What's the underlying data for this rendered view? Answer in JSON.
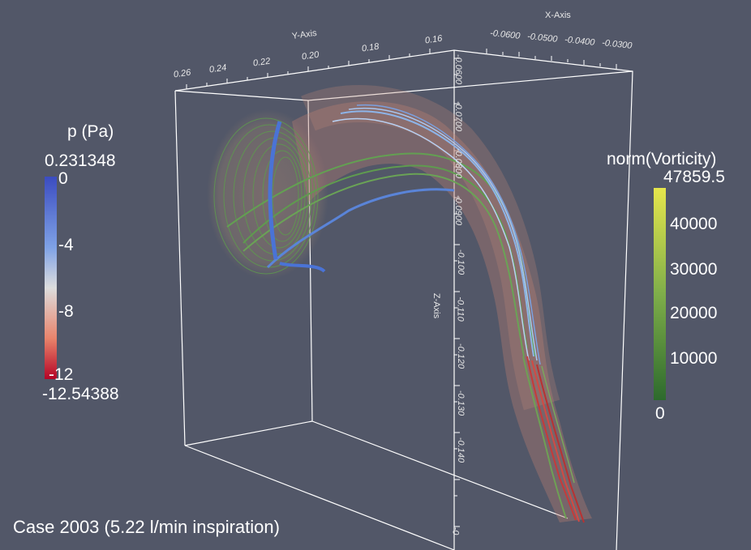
{
  "caption": "Case 2003 (5.22 l/min inspiration)",
  "pressure_bar": {
    "title": "p (Pa)",
    "max_label": "0.231348",
    "min_label": "-12.54388",
    "ticks": [
      "0",
      "-4",
      "-8",
      "-12"
    ],
    "colors": {
      "top": "#3b4cc0",
      "mid": "#dddddd",
      "bottom": "#b40426"
    }
  },
  "vorticity_bar": {
    "title": "norm(Vorticity)",
    "max_label": "47859.5",
    "min_label": "0",
    "ticks": [
      "40000",
      "30000",
      "20000",
      "10000"
    ],
    "colors": {
      "top": "#e6e64c",
      "bottom": "#2d6a2d"
    }
  },
  "x_axis": {
    "title": "X-Axis",
    "ticks": [
      "-0.0600",
      "-0.0500",
      "-0.0400",
      "-0.0300"
    ]
  },
  "y_axis": {
    "title": "Y-Axis",
    "ticks": [
      "0.26",
      "0.24",
      "0.22",
      "0.20",
      "0.18",
      "0.16"
    ]
  },
  "z_axis": {
    "title": "Z-Axis",
    "ticks": [
      "-0.0600",
      "-0.0700",
      "-0.0800",
      "-0.0900",
      "-0.100",
      "-0.110",
      "-0.120",
      "-0.130",
      "-0.140",
      "-0"
    ]
  }
}
